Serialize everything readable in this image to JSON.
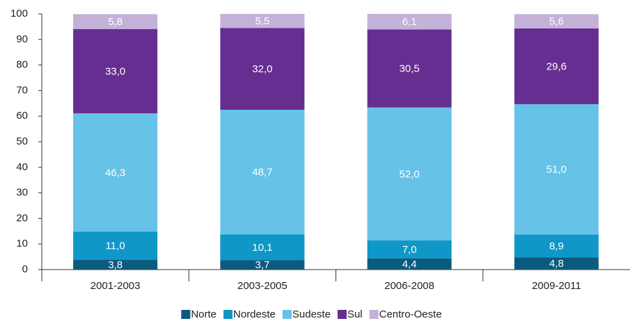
{
  "chart_data": {
    "type": "stacked_bar",
    "categories": [
      "2001-2003",
      "2003-2005",
      "2006-2008",
      "2009-2011"
    ],
    "series": [
      {
        "name": "Norte",
        "color": "#0b5b7f",
        "values": [
          3.8,
          3.7,
          4.4,
          4.8
        ],
        "value_labels": [
          "3,8",
          "3,7",
          "4,4",
          "4,8"
        ]
      },
      {
        "name": "Nordeste",
        "color": "#0f97c7",
        "values": [
          11.0,
          10.1,
          7.0,
          8.9
        ],
        "value_labels": [
          "11,0",
          "10,1",
          "7,0",
          "8,9"
        ]
      },
      {
        "name": "Sudeste",
        "color": "#67c2e7",
        "values": [
          46.3,
          48.7,
          52.0,
          51.0
        ],
        "value_labels": [
          "46,3",
          "48,7",
          "52,0",
          "51,0"
        ]
      },
      {
        "name": "Sul",
        "color": "#662e91",
        "values": [
          33.0,
          32.0,
          30.5,
          29.6
        ],
        "value_labels": [
          "33,0",
          "32,0",
          "30,5",
          "29,6"
        ]
      },
      {
        "name": "Centro-Oeste",
        "color": "#c4b1d8",
        "values": [
          5.8,
          5.5,
          6.1,
          5.6
        ],
        "value_labels": [
          "5,8",
          "5,5",
          "6,1",
          "5,6"
        ]
      }
    ],
    "ylim": [
      0,
      100
    ],
    "yticks": [
      0,
      10,
      20,
      30,
      40,
      50,
      60,
      70,
      80,
      90,
      100
    ],
    "legend": "bottom"
  }
}
